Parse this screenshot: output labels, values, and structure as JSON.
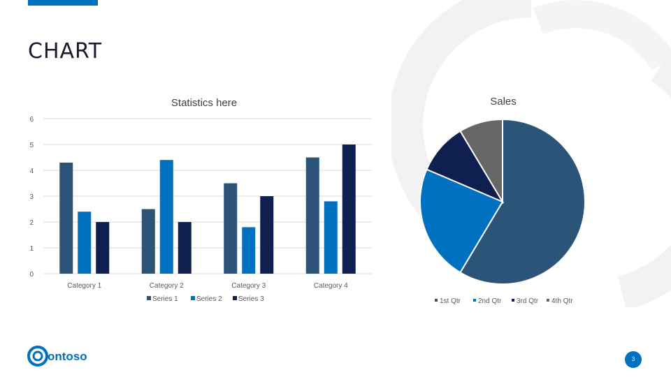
{
  "slide": {
    "title": "CHART",
    "page_number": "3",
    "logo_text": "ontoso"
  },
  "colors": {
    "accent": "#0070c0",
    "series": [
      "#2b5478",
      "#0070c0",
      "#0f1f4f"
    ],
    "pie": [
      "#2b5478",
      "#0070c0",
      "#0f1f4f",
      "#666666"
    ],
    "watermark": "#f2f2f2"
  },
  "chart_data": [
    {
      "type": "bar",
      "title": "Statistics here",
      "categories": [
        "Category 1",
        "Category 2",
        "Category 3",
        "Category 4"
      ],
      "series": [
        {
          "name": "Series 1",
          "values": [
            4.3,
            2.5,
            3.5,
            4.5
          ]
        },
        {
          "name": "Series 2",
          "values": [
            2.4,
            4.4,
            1.8,
            2.8
          ]
        },
        {
          "name": "Series 3",
          "values": [
            2,
            2,
            3,
            5
          ]
        }
      ],
      "ylim": [
        0,
        6
      ],
      "yticks": [
        0,
        1,
        2,
        3,
        4,
        5,
        6
      ],
      "grid": true,
      "legend": "bottom"
    },
    {
      "type": "pie",
      "title": "Sales",
      "labels": [
        "1st Qtr",
        "2nd Qtr",
        "3rd Qtr",
        "4th Qtr"
      ],
      "values": [
        8.2,
        3.2,
        1.4,
        1.2
      ],
      "legend": "bottom"
    }
  ]
}
